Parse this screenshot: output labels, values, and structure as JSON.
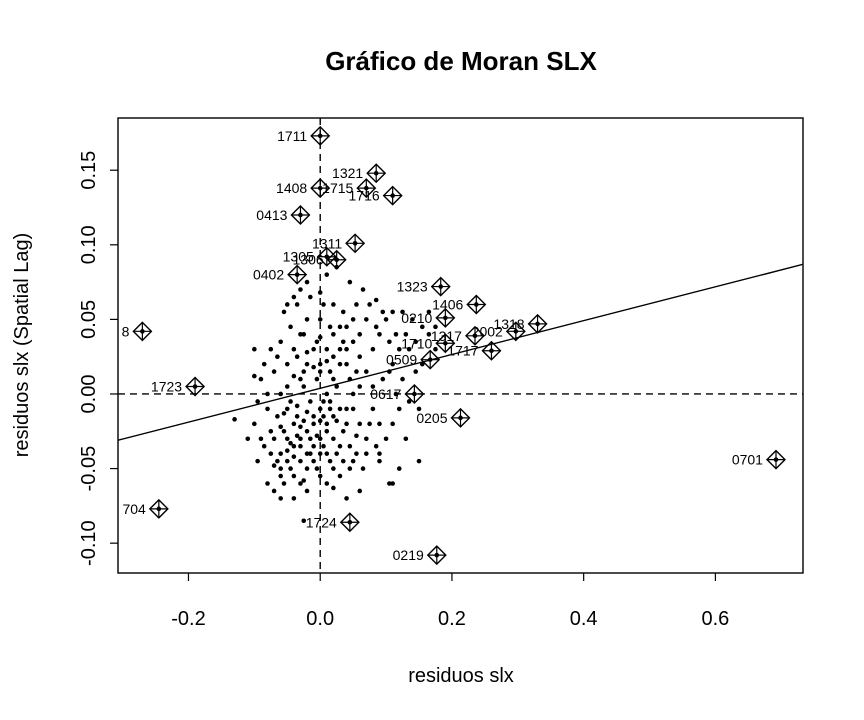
{
  "chart_data": {
    "type": "scatter",
    "title": "Gráfico de Moran SLX",
    "xlabel": "residuos slx",
    "ylabel": "residuos slx (Spatial Lag)",
    "xlim": [
      -0.307,
      0.733
    ],
    "ylim": [
      -0.12,
      0.185
    ],
    "xticks": [
      -0.2,
      0.0,
      0.2,
      0.4,
      0.6
    ],
    "xtick_labels": [
      "-0.2",
      "0.0",
      "0.2",
      "0.4",
      "0.6"
    ],
    "yticks": [
      -0.1,
      -0.05,
      0.0,
      0.05,
      0.1,
      0.15
    ],
    "ytick_labels": [
      "-0.10",
      "-0.05",
      "0.00",
      "0.05",
      "0.10",
      "0.15"
    ],
    "reference_lines": {
      "x_mean": 0.0,
      "y_mean": 0.0,
      "style": "dashed"
    },
    "regression_line": {
      "intercept": 0.0038,
      "slope": 0.1134
    },
    "influential_points": [
      {
        "label": "1711",
        "x": 0.0,
        "y": 0.173
      },
      {
        "label": "1321",
        "x": 0.085,
        "y": 0.148
      },
      {
        "label": "1408",
        "x": 0.0,
        "y": 0.138
      },
      {
        "label": "1715",
        "x": 0.07,
        "y": 0.138
      },
      {
        "label": "1716",
        "x": 0.11,
        "y": 0.133
      },
      {
        "label": "0413",
        "x": -0.03,
        "y": 0.12
      },
      {
        "label": "1311",
        "x": 0.053,
        "y": 0.101
      },
      {
        "label": "1305",
        "x": 0.01,
        "y": 0.092
      },
      {
        "label": "1306",
        "x": 0.025,
        "y": 0.09
      },
      {
        "label": "0402",
        "x": -0.035,
        "y": 0.08
      },
      {
        "label": "1323",
        "x": 0.183,
        "y": 0.072
      },
      {
        "label": "1406",
        "x": 0.237,
        "y": 0.06
      },
      {
        "label": "0210",
        "x": 0.19,
        "y": 0.051
      },
      {
        "label": "1318",
        "x": 0.33,
        "y": 0.047
      },
      {
        "label": "1317",
        "x": 0.235,
        "y": 0.039
      },
      {
        "label": "2002",
        "x": 0.297,
        "y": 0.042
      },
      {
        "label": "1710",
        "x": 0.19,
        "y": 0.034
      },
      {
        "label": "1717",
        "x": 0.26,
        "y": 0.029
      },
      {
        "label": "0509",
        "x": 0.167,
        "y": 0.023
      },
      {
        "label": "8",
        "x": -0.27,
        "y": 0.042
      },
      {
        "label": "1723",
        "x": -0.19,
        "y": 0.005
      },
      {
        "label": "0617",
        "x": 0.143,
        "y": 0.0
      },
      {
        "label": "0205",
        "x": 0.213,
        "y": -0.016
      },
      {
        "label": "0701",
        "x": 0.692,
        "y": -0.044
      },
      {
        "label": "704",
        "x": -0.245,
        "y": -0.077
      },
      {
        "label": "1724",
        "x": 0.045,
        "y": -0.086
      },
      {
        "label": "0219",
        "x": 0.177,
        "y": -0.108
      }
    ],
    "points": [
      [
        -0.06,
        0.0
      ],
      [
        -0.05,
        -0.01
      ],
      [
        -0.04,
        -0.02
      ],
      [
        -0.03,
        -0.03
      ],
      [
        -0.02,
        -0.04
      ],
      [
        -0.01,
        -0.02
      ],
      [
        0.0,
        -0.01
      ],
      [
        0.01,
        0.0
      ],
      [
        0.02,
        0.01
      ],
      [
        0.03,
        0.02
      ],
      [
        -0.07,
        -0.03
      ],
      [
        -0.06,
        -0.04
      ],
      [
        -0.05,
        -0.03
      ],
      [
        -0.04,
        -0.035
      ],
      [
        -0.03,
        -0.045
      ],
      [
        -0.02,
        -0.025
      ],
      [
        -0.01,
        -0.035
      ],
      [
        0.0,
        -0.04
      ],
      [
        0.01,
        -0.02
      ],
      [
        0.02,
        -0.03
      ],
      [
        -0.065,
        -0.015
      ],
      [
        -0.055,
        -0.025
      ],
      [
        -0.045,
        -0.005
      ],
      [
        -0.035,
        -0.015
      ],
      [
        -0.025,
        0.005
      ],
      [
        -0.015,
        -0.005
      ],
      [
        -0.005,
        0.01
      ],
      [
        0.005,
        -0.015
      ],
      [
        0.015,
        -0.005
      ],
      [
        0.025,
        0.005
      ],
      [
        -0.075,
        -0.04
      ],
      [
        -0.06,
        -0.05
      ],
      [
        -0.05,
        -0.045
      ],
      [
        -0.04,
        -0.055
      ],
      [
        -0.03,
        -0.035
      ],
      [
        -0.02,
        -0.05
      ],
      [
        -0.01,
        -0.045
      ],
      [
        0.0,
        -0.03
      ],
      [
        0.01,
        -0.04
      ],
      [
        0.02,
        -0.05
      ],
      [
        -0.05,
        0.02
      ],
      [
        -0.04,
        0.03
      ],
      [
        -0.03,
        0.01
      ],
      [
        -0.02,
        0.02
      ],
      [
        -0.01,
        0.03
      ],
      [
        0.0,
        0.02
      ],
      [
        0.01,
        0.03
      ],
      [
        0.02,
        0.04
      ],
      [
        0.03,
        0.03
      ],
      [
        0.04,
        0.02
      ],
      [
        -0.045,
        0.045
      ],
      [
        -0.035,
        0.06
      ],
      [
        -0.02,
        0.05
      ],
      [
        0.0,
        0.05
      ],
      [
        0.02,
        0.06
      ],
      [
        0.04,
        0.045
      ],
      [
        0.05,
        0.035
      ],
      [
        0.06,
        0.025
      ],
      [
        0.07,
        0.015
      ],
      [
        0.08,
        0.005
      ],
      [
        0.03,
        -0.01
      ],
      [
        0.04,
        -0.02
      ],
      [
        0.05,
        -0.01
      ],
      [
        0.06,
        -0.02
      ],
      [
        0.07,
        -0.03
      ],
      [
        0.08,
        -0.01
      ],
      [
        0.09,
        -0.02
      ],
      [
        0.1,
        -0.03
      ],
      [
        0.11,
        -0.02
      ],
      [
        0.12,
        -0.01
      ],
      [
        0.05,
        0.05
      ],
      [
        0.06,
        0.04
      ],
      [
        0.07,
        0.05
      ],
      [
        0.08,
        0.03
      ],
      [
        0.09,
        0.04
      ],
      [
        0.1,
        0.05
      ],
      [
        0.11,
        0.02
      ],
      [
        0.12,
        0.03
      ],
      [
        0.13,
        0.04
      ],
      [
        0.14,
        0.05
      ],
      [
        -0.08,
        -0.06
      ],
      [
        -0.07,
        -0.065
      ],
      [
        -0.06,
        -0.055
      ],
      [
        -0.03,
        -0.06
      ],
      [
        0.01,
        -0.06
      ],
      [
        0.03,
        -0.055
      ],
      [
        0.05,
        -0.045
      ],
      [
        0.07,
        -0.04
      ],
      [
        0.09,
        -0.045
      ],
      [
        0.11,
        -0.06
      ],
      [
        -0.1,
        -0.02
      ],
      [
        -0.09,
        -0.03
      ],
      [
        -0.08,
        0.0
      ],
      [
        -0.09,
        0.01
      ],
      [
        -0.1,
        0.03
      ],
      [
        -0.13,
        -0.017
      ],
      [
        -0.11,
        -0.03
      ],
      [
        -0.095,
        -0.045
      ],
      [
        0.13,
        -0.03
      ],
      [
        0.15,
        -0.01
      ],
      [
        -0.06,
        0.035
      ],
      [
        -0.055,
        0.055
      ],
      [
        -0.04,
        0.065
      ],
      [
        -0.025,
        0.04
      ],
      [
        -0.015,
        0.065
      ],
      [
        0.005,
        0.06
      ],
      [
        0.015,
        0.045
      ],
      [
        0.035,
        0.055
      ],
      [
        0.055,
        0.06
      ],
      [
        0.065,
        0.07
      ],
      [
        -0.07,
        0.015
      ],
      [
        -0.065,
        0.025
      ],
      [
        -0.05,
        0.005
      ],
      [
        -0.035,
        0.025
      ],
      [
        -0.025,
        0.015
      ],
      [
        -0.005,
        0.035
      ],
      [
        0.015,
        0.015
      ],
      [
        0.035,
        0.035
      ],
      [
        0.045,
        0.01
      ],
      [
        0.055,
        0.015
      ],
      [
        -0.04,
        -0.07
      ],
      [
        -0.02,
        -0.065
      ],
      [
        0.0,
        -0.055
      ],
      [
        0.02,
        -0.063
      ],
      [
        -0.06,
        -0.07
      ],
      [
        0.04,
        -0.07
      ],
      [
        -0.055,
        -0.013
      ],
      [
        -0.045,
        -0.033
      ],
      [
        -0.035,
        -0.008
      ],
      [
        -0.025,
        -0.018
      ],
      [
        -0.015,
        -0.03
      ],
      [
        -0.005,
        -0.028
      ],
      [
        0.005,
        -0.005
      ],
      [
        0.015,
        -0.01
      ],
      [
        0.025,
        -0.018
      ],
      [
        0.035,
        -0.025
      ],
      [
        0.045,
        -0.035
      ],
      [
        0.055,
        -0.028
      ],
      [
        0.065,
        -0.05
      ],
      [
        0.075,
        -0.02
      ],
      [
        0.085,
        -0.035
      ],
      [
        0.095,
        0.01
      ],
      [
        0.105,
        0.015
      ],
      [
        0.115,
        0.0
      ],
      [
        0.125,
        0.01
      ],
      [
        0.135,
        -0.005
      ],
      [
        0.145,
        0.015
      ],
      [
        0.155,
        0.02
      ],
      [
        0.085,
        0.045
      ],
      [
        0.095,
        0.055
      ],
      [
        0.105,
        0.035
      ],
      [
        0.115,
        0.04
      ],
      [
        0.125,
        0.055
      ],
      [
        0.135,
        0.03
      ],
      [
        0.145,
        0.035
      ],
      [
        0.155,
        0.045
      ],
      [
        0.165,
        0.04
      ],
      [
        0.175,
        0.03
      ],
      [
        0.165,
        0.055
      ],
      [
        0.175,
        0.045
      ],
      [
        -0.08,
        -0.01
      ],
      [
        -0.075,
        -0.025
      ],
      [
        -0.085,
        -0.035
      ],
      [
        -0.065,
        -0.045
      ],
      [
        -0.055,
        -0.06
      ],
      [
        -0.045,
        -0.05
      ],
      [
        -0.035,
        -0.028
      ],
      [
        -0.025,
        -0.058
      ],
      [
        -0.015,
        -0.04
      ],
      [
        -0.005,
        -0.05
      ],
      [
        0.005,
        -0.035
      ],
      [
        0.015,
        -0.045
      ],
      [
        0.025,
        -0.04
      ],
      [
        0.035,
        -0.045
      ],
      [
        0.045,
        -0.05
      ],
      [
        0.055,
        -0.04
      ],
      [
        -0.07,
        -0.048
      ],
      [
        -0.06,
        -0.022
      ],
      [
        -0.05,
        -0.038
      ],
      [
        -0.04,
        -0.042
      ],
      [
        -0.03,
        -0.022
      ],
      [
        -0.02,
        -0.012
      ],
      [
        -0.01,
        -0.015
      ],
      [
        0.0,
        -0.018
      ],
      [
        0.01,
        -0.025
      ],
      [
        0.02,
        -0.015
      ],
      [
        0.03,
        -0.035
      ],
      [
        0.04,
        -0.01
      ],
      [
        0.05,
        0.0
      ],
      [
        0.06,
        0.005
      ],
      [
        -0.04,
        0.012
      ],
      [
        -0.03,
        0.04
      ],
      [
        -0.02,
        0.028
      ],
      [
        -0.01,
        0.018
      ],
      [
        0.0,
        0.038
      ],
      [
        0.01,
        0.022
      ],
      [
        0.02,
        0.025
      ],
      [
        0.03,
        0.045
      ],
      [
        0.04,
        0.03
      ],
      [
        0.0,
        0.068
      ],
      [
        -0.02,
        0.075
      ],
      [
        0.01,
        0.08
      ],
      [
        0.025,
        0.085
      ],
      [
        0.045,
        0.075
      ],
      [
        0.075,
        0.06
      ],
      [
        0.085,
        0.063
      ],
      [
        0.11,
        0.055
      ],
      [
        -0.03,
        0.07
      ],
      [
        -0.05,
        0.06
      ],
      [
        0.0,
        0.015
      ],
      [
        -0.025,
        -0.085
      ],
      [
        0.06,
        -0.065
      ],
      [
        0.105,
        -0.06
      ],
      [
        0.09,
        -0.04
      ],
      [
        0.15,
        -0.045
      ],
      [
        0.12,
        -0.05
      ],
      [
        -0.095,
        -0.005
      ],
      [
        -0.1,
        0.012
      ],
      [
        -0.085,
        0.02
      ],
      [
        -0.075,
        0.03
      ]
    ]
  }
}
